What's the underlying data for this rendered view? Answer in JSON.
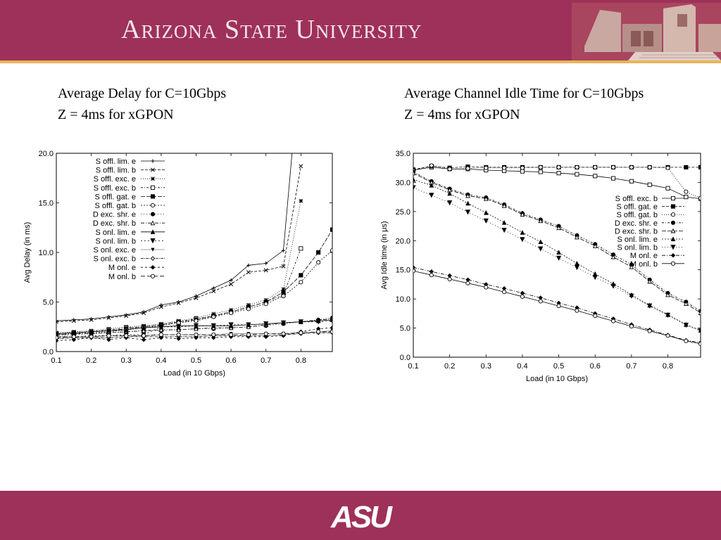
{
  "header": {
    "university_name": "Arizona State University",
    "bg_color": "#9e3159",
    "stripe_color": "#e9b45a"
  },
  "footer": {
    "logo_text": "ASU",
    "bg_color": "#9e3159"
  },
  "slide": {
    "left_title_line1": "Average Delay for C=10Gbps",
    "left_title_line2": "Z = 4ms for xGPON",
    "right_title_line1": "Average Channel Idle Time for C=10Gbps",
    "right_title_line2": "Z = 4ms for xGPON"
  },
  "chart_data": [
    {
      "type": "line",
      "xlabel": "Load (in 10 Gbps)",
      "ylabel": "Avg Delay (in ms)",
      "xlim": [
        0.1,
        0.89
      ],
      "ylim": [
        0,
        20
      ],
      "xticks": [
        "0.1",
        "0.2",
        "0.3",
        "0.4",
        "0.5",
        "0.6",
        "0.7",
        "0.8"
      ],
      "yticks": [
        "0.0",
        "5.0",
        "10.0",
        "15.0",
        "20.0"
      ],
      "legend_position": "top-left",
      "x": [
        0.1,
        0.15,
        0.2,
        0.25,
        0.3,
        0.35,
        0.4,
        0.45,
        0.5,
        0.55,
        0.6,
        0.65,
        0.7,
        0.75,
        0.8,
        0.85,
        0.89
      ],
      "series": [
        {
          "name": "S offl. lim. e",
          "marker": "plus",
          "values": [
            3.1,
            3.2,
            3.3,
            3.5,
            3.7,
            4.0,
            4.7,
            5.0,
            5.6,
            6.4,
            7.2,
            8.7,
            8.9,
            10.2,
            30,
            null,
            null
          ]
        },
        {
          "name": "S offl. lim. b",
          "marker": "x",
          "values": [
            3.0,
            3.1,
            3.2,
            3.4,
            3.6,
            3.9,
            4.5,
            4.9,
            5.4,
            6.1,
            6.8,
            8.0,
            8.2,
            8.6,
            18.7,
            null,
            null
          ]
        },
        {
          "name": "S offl. exc. e",
          "marker": "star",
          "values": [
            1.9,
            2.0,
            2.1,
            2.3,
            2.5,
            2.6,
            2.8,
            3.1,
            3.4,
            3.8,
            4.2,
            4.7,
            5.2,
            6.3,
            15.2,
            null,
            null
          ]
        },
        {
          "name": "S offl. exc. b",
          "marker": "square-open",
          "values": [
            1.8,
            1.9,
            2.0,
            2.2,
            2.4,
            2.5,
            2.7,
            3.0,
            3.3,
            3.6,
            4.0,
            4.5,
            5.0,
            5.7,
            10.4,
            null,
            null
          ]
        },
        {
          "name": "S offl. gat. e",
          "marker": "square-filled",
          "values": [
            1.8,
            1.9,
            2.0,
            2.1,
            2.3,
            2.5,
            2.7,
            3.0,
            3.2,
            3.6,
            4.0,
            4.5,
            5.0,
            6.0,
            7.7,
            10.0,
            12.3
          ]
        },
        {
          "name": "S offl. gat. b",
          "marker": "circle-open",
          "values": [
            1.7,
            1.8,
            1.9,
            2.0,
            2.2,
            2.4,
            2.6,
            2.9,
            3.1,
            3.5,
            3.9,
            4.3,
            4.8,
            5.6,
            7.0,
            9.0,
            10.2
          ]
        },
        {
          "name": "D exc. shr. e",
          "marker": "circle-filled",
          "values": [
            1.6,
            1.7,
            1.8,
            1.9,
            2.0,
            2.1,
            2.1,
            2.2,
            2.3,
            2.3,
            2.4,
            2.5,
            2.6,
            2.8,
            3.0,
            3.2,
            3.4
          ]
        },
        {
          "name": "D exc. shr. b",
          "marker": "triangle-open",
          "values": [
            1.7,
            1.8,
            1.8,
            1.9,
            2.0,
            2.1,
            2.2,
            2.2,
            2.3,
            2.4,
            2.4,
            2.5,
            2.7,
            2.9,
            3.0,
            3.2,
            3.3
          ]
        },
        {
          "name": "S onl. lim. e",
          "marker": "triangle-filled",
          "values": [
            1.8,
            1.9,
            2.0,
            2.1,
            2.2,
            2.4,
            2.5,
            2.6,
            2.6,
            2.6,
            2.6,
            2.7,
            2.8,
            2.9,
            3.0,
            3.1,
            3.2
          ]
        },
        {
          "name": "S onl. lim. b",
          "marker": "triangle-down",
          "values": [
            1.5,
            1.5,
            1.6,
            1.6,
            1.7,
            1.7,
            2.5,
            2.5,
            2.6,
            2.6,
            2.7,
            2.7,
            2.8,
            2.9,
            3.0,
            3.0,
            3.1
          ]
        },
        {
          "name": "S onl. exc. e",
          "marker": "triangle-down-small",
          "values": [
            1.5,
            1.5,
            1.5,
            1.6,
            1.6,
            1.6,
            1.7,
            1.7,
            1.7,
            1.7,
            1.8,
            1.8,
            1.8,
            1.8,
            1.9,
            2.0,
            2.1
          ]
        },
        {
          "name": "S onl. exc. b",
          "marker": "diamond-open",
          "values": [
            1.3,
            1.4,
            1.4,
            1.4,
            1.5,
            1.5,
            1.5,
            1.5,
            1.5,
            1.6,
            1.6,
            1.6,
            1.6,
            1.7,
            1.8,
            1.9,
            1.9
          ]
        },
        {
          "name": "M onl. e",
          "marker": "diamond-filled",
          "values": [
            1.1,
            1.2,
            1.4,
            1.2,
            1.4,
            1.2,
            1.4,
            1.3,
            1.4,
            1.4,
            1.5,
            1.5,
            1.5,
            1.6,
            2.0,
            2.3,
            2.4
          ]
        },
        {
          "name": "M onl. b",
          "marker": "circle-open",
          "values": [
            1.4,
            1.5,
            1.5,
            1.6,
            1.6,
            1.6,
            1.7,
            1.7,
            1.7,
            1.7,
            1.7,
            1.7,
            1.8,
            1.8,
            1.9,
            2.0,
            2.0
          ]
        }
      ]
    },
    {
      "type": "line",
      "xlabel": "Load (in 10 Gbps)",
      "ylabel": "Avg Idle time (in μs)",
      "xlim": [
        0.1,
        0.89
      ],
      "ylim": [
        0,
        35
      ],
      "xticks": [
        "0.1",
        "0.2",
        "0.3",
        "0.4",
        "0.5",
        "0.6",
        "0.7",
        "0.8"
      ],
      "yticks": [
        "0.0",
        "5.0",
        "10.0",
        "15.0",
        "20.0",
        "25.0",
        "30.0",
        "35.0"
      ],
      "legend_position": "right-middle",
      "x": [
        0.1,
        0.15,
        0.2,
        0.25,
        0.3,
        0.35,
        0.4,
        0.45,
        0.5,
        0.55,
        0.6,
        0.65,
        0.7,
        0.75,
        0.8,
        0.85,
        0.89
      ],
      "series": [
        {
          "name": "S offl. exc. b",
          "marker": "square-open",
          "values": [
            32.1,
            32.6,
            32.3,
            32.3,
            32.1,
            32.0,
            31.9,
            31.8,
            31.6,
            31.4,
            31.1,
            30.7,
            30.2,
            29.6,
            29.0,
            27.5,
            27.2
          ]
        },
        {
          "name": "S offl. gat. e",
          "marker": "square-filled",
          "values": [
            32.2,
            32.8,
            32.5,
            32.7,
            32.6,
            32.6,
            32.6,
            32.6,
            32.6,
            32.6,
            32.6,
            32.6,
            32.6,
            32.6,
            32.6,
            32.6,
            32.6
          ]
        },
        {
          "name": "S offl. gat. b",
          "marker": "circle-open",
          "values": [
            32.0,
            32.9,
            32.3,
            32.4,
            32.5,
            32.5,
            32.5,
            32.6,
            32.6,
            32.6,
            32.6,
            32.6,
            32.6,
            32.6,
            32.5,
            28.4,
            27.3
          ]
        },
        {
          "name": "D exc. shr. e",
          "marker": "circle-filled",
          "values": [
            31.8,
            30.2,
            28.9,
            27.9,
            27.4,
            26.2,
            24.7,
            23.6,
            22.5,
            20.9,
            19.4,
            17.6,
            15.9,
            13.3,
            11.0,
            9.5,
            7.9
          ]
        },
        {
          "name": "D exc. shr. b",
          "marker": "triangle-open",
          "values": [
            31.6,
            30.0,
            28.7,
            27.7,
            27.2,
            26.0,
            24.5,
            23.4,
            22.2,
            20.6,
            19.1,
            17.2,
            15.5,
            13.0,
            10.7,
            9.2,
            7.6
          ]
        },
        {
          "name": "S onl. lim. e",
          "marker": "triangle-filled",
          "values": [
            30.5,
            29.5,
            28.1,
            26.4,
            24.8,
            23.1,
            21.4,
            19.8,
            18.0,
            16.1,
            14.3,
            12.6,
            10.7,
            8.9,
            7.3,
            5.6,
            4.6
          ]
        },
        {
          "name": "S onl. lim. b",
          "marker": "triangle-down",
          "values": [
            29.1,
            27.8,
            26.5,
            24.9,
            23.4,
            21.8,
            20.2,
            18.6,
            17.0,
            15.4,
            13.7,
            12.2,
            10.5,
            8.8,
            7.2,
            5.5,
            4.5
          ]
        },
        {
          "name": "M onl. e",
          "marker": "diamond-filled",
          "values": [
            15.4,
            14.7,
            14.0,
            13.3,
            12.5,
            11.8,
            11.0,
            10.2,
            9.3,
            8.5,
            7.5,
            6.6,
            5.6,
            4.7,
            3.8,
            2.9,
            2.5
          ]
        },
        {
          "name": "M onl. b",
          "marker": "circle-open",
          "values": [
            14.8,
            14.1,
            13.4,
            12.7,
            12.0,
            11.2,
            10.4,
            9.6,
            8.8,
            8.0,
            7.1,
            6.2,
            5.3,
            4.5,
            3.7,
            2.8,
            2.3
          ]
        }
      ]
    }
  ]
}
